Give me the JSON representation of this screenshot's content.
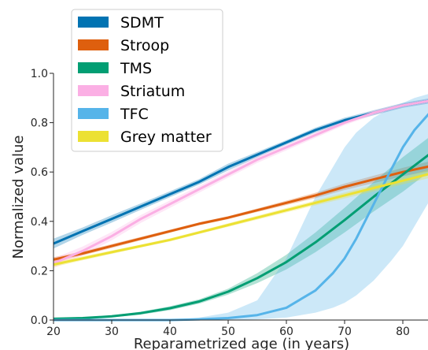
{
  "chart_data": {
    "type": "line",
    "title": "",
    "xlabel": "Reparametrized age (in years)",
    "ylabel": "Normalized value",
    "xlim": [
      20,
      85
    ],
    "ylim": [
      0.0,
      1.0
    ],
    "xticks": [
      20,
      30,
      40,
      50,
      60,
      70,
      80
    ],
    "yticks": [
      0.0,
      0.2,
      0.4,
      0.6,
      0.8,
      1.0
    ],
    "xtick_labels": [
      "20",
      "30",
      "40",
      "50",
      "60",
      "70",
      "80"
    ],
    "ytick_labels": [
      "0.0",
      "0.2",
      "0.4",
      "0.6",
      "0.8",
      "1.0"
    ],
    "grid": false,
    "legend_position": "top-left",
    "series": [
      {
        "name": "SDMT",
        "color": "#0173b2",
        "x": [
          20,
          25,
          30,
          35,
          40,
          45,
          50,
          55,
          60,
          65,
          70,
          75,
          80,
          85
        ],
        "y": [
          0.31,
          0.36,
          0.41,
          0.46,
          0.51,
          0.56,
          0.62,
          0.67,
          0.72,
          0.77,
          0.81,
          0.84,
          0.87,
          0.89
        ],
        "band_lower": [
          0.29,
          0.345,
          0.395,
          0.447,
          0.498,
          0.549,
          0.606,
          0.659,
          0.711,
          0.76,
          0.8,
          0.83,
          0.86,
          0.88
        ],
        "band_upper": [
          0.33,
          0.375,
          0.425,
          0.473,
          0.522,
          0.571,
          0.634,
          0.681,
          0.729,
          0.78,
          0.82,
          0.85,
          0.88,
          0.9
        ]
      },
      {
        "name": "Stroop",
        "color": "#de5f0e",
        "x": [
          20,
          25,
          30,
          35,
          40,
          45,
          50,
          55,
          60,
          65,
          70,
          75,
          80,
          85
        ],
        "y": [
          0.245,
          0.27,
          0.3,
          0.33,
          0.36,
          0.39,
          0.415,
          0.445,
          0.475,
          0.505,
          0.54,
          0.57,
          0.6,
          0.625
        ],
        "band_lower": [
          0.235,
          0.262,
          0.292,
          0.323,
          0.354,
          0.384,
          0.409,
          0.438,
          0.466,
          0.494,
          0.527,
          0.555,
          0.583,
          0.605
        ],
        "band_upper": [
          0.255,
          0.278,
          0.308,
          0.337,
          0.366,
          0.396,
          0.421,
          0.452,
          0.484,
          0.516,
          0.553,
          0.585,
          0.617,
          0.645
        ]
      },
      {
        "name": "TMS",
        "color": "#029e73",
        "x": [
          20,
          25,
          30,
          35,
          40,
          45,
          50,
          55,
          60,
          65,
          70,
          75,
          80,
          85
        ],
        "y": [
          0.005,
          0.008,
          0.015,
          0.028,
          0.048,
          0.075,
          0.115,
          0.17,
          0.235,
          0.315,
          0.405,
          0.5,
          0.59,
          0.68
        ],
        "band_lower": [
          0.003,
          0.005,
          0.011,
          0.022,
          0.04,
          0.066,
          0.103,
          0.15,
          0.205,
          0.275,
          0.355,
          0.44,
          0.52,
          0.61
        ],
        "band_upper": [
          0.007,
          0.011,
          0.019,
          0.034,
          0.056,
          0.084,
          0.127,
          0.19,
          0.265,
          0.355,
          0.455,
          0.56,
          0.66,
          0.75
        ]
      },
      {
        "name": "Striatum",
        "color": "#fbafe4",
        "x": [
          20,
          25,
          30,
          35,
          40,
          45,
          50,
          55,
          60,
          65,
          70,
          75,
          80,
          85
        ],
        "y": [
          0.23,
          0.28,
          0.34,
          0.41,
          0.47,
          0.53,
          0.59,
          0.65,
          0.7,
          0.75,
          0.8,
          0.84,
          0.87,
          0.89
        ],
        "band_lower": [
          0.21,
          0.262,
          0.323,
          0.394,
          0.455,
          0.516,
          0.577,
          0.637,
          0.688,
          0.739,
          0.79,
          0.831,
          0.862,
          0.88
        ],
        "band_upper": [
          0.25,
          0.298,
          0.357,
          0.426,
          0.485,
          0.544,
          0.603,
          0.663,
          0.712,
          0.761,
          0.81,
          0.849,
          0.878,
          0.9
        ]
      },
      {
        "name": "TFC",
        "color": "#56b4e9",
        "x": [
          20,
          30,
          40,
          45,
          50,
          55,
          60,
          65,
          68,
          70,
          72,
          75,
          78,
          80,
          82,
          85
        ],
        "y": [
          0.0,
          0.0,
          0.0,
          0.003,
          0.008,
          0.02,
          0.05,
          0.12,
          0.19,
          0.25,
          0.33,
          0.47,
          0.61,
          0.7,
          0.77,
          0.85
        ],
        "band_lower": [
          0.0,
          0.0,
          0.0,
          0.0,
          0.0,
          0.003,
          0.01,
          0.03,
          0.05,
          0.07,
          0.1,
          0.16,
          0.24,
          0.3,
          0.38,
          0.5
        ],
        "band_upper": [
          0.0,
          0.0,
          0.0,
          0.01,
          0.03,
          0.08,
          0.25,
          0.5,
          0.62,
          0.7,
          0.76,
          0.82,
          0.86,
          0.88,
          0.9,
          0.92
        ]
      },
      {
        "name": "Grey matter",
        "color": "#ece133",
        "x": [
          20,
          25,
          30,
          35,
          40,
          45,
          50,
          55,
          60,
          65,
          70,
          75,
          80,
          85
        ],
        "y": [
          0.225,
          0.25,
          0.275,
          0.3,
          0.325,
          0.355,
          0.385,
          0.415,
          0.445,
          0.475,
          0.505,
          0.535,
          0.565,
          0.595
        ],
        "band_lower": [
          0.215,
          0.242,
          0.268,
          0.294,
          0.319,
          0.349,
          0.378,
          0.407,
          0.436,
          0.465,
          0.493,
          0.522,
          0.55,
          0.578
        ],
        "band_upper": [
          0.235,
          0.258,
          0.282,
          0.306,
          0.331,
          0.361,
          0.392,
          0.423,
          0.454,
          0.485,
          0.517,
          0.548,
          0.58,
          0.612
        ]
      }
    ]
  }
}
